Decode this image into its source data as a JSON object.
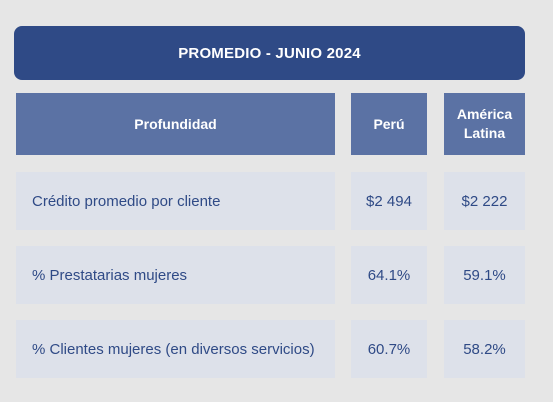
{
  "title": "PROMEDIO - JUNIO 2024",
  "headers": {
    "col1": "Profundidad",
    "col2": "Perú",
    "col3_line1": "América",
    "col3_line2": "Latina"
  },
  "rows": [
    {
      "label": "Crédito promedio por cliente",
      "peru": "$2 494",
      "latam": "$2 222"
    },
    {
      "label": "% Prestatarias mujeres",
      "peru": "64.1%",
      "latam": "59.1%"
    },
    {
      "label": "% Clientes mujeres (en diversos servicios)",
      "peru": "60.7%",
      "latam": "58.2%"
    }
  ],
  "colors": {
    "title_bg": "#2f4a86",
    "header_bg": "#5b72a4",
    "cell_bg": "#dde1ea",
    "text_dark": "#2f4a86"
  }
}
